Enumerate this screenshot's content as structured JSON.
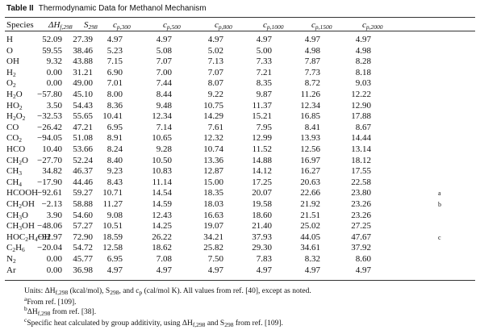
{
  "title": {
    "label": "Table II",
    "text": "Thermodynamic Data for Methanol Mechanism"
  },
  "header": [
    {
      "text": "Species"
    },
    {
      "text": "ΔH",
      "sub": "f,298"
    },
    {
      "text": "S",
      "sub": "298"
    },
    {
      "text": "c",
      "sub": "p,300"
    },
    {
      "text": "c",
      "sub": "p,500"
    },
    {
      "text": "c",
      "sub": "p,800"
    },
    {
      "text": "c",
      "sub": "p,1000"
    },
    {
      "text": "c",
      "sub": "p,1500"
    },
    {
      "text": "c",
      "sub": "p,2000"
    }
  ],
  "rows": [
    [
      "H",
      "52.09",
      "27.39",
      "4.97",
      "4.97",
      "4.97",
      "4.97",
      "4.97",
      "4.97"
    ],
    [
      "O",
      "59.55",
      "38.46",
      "5.23",
      "5.08",
      "5.02",
      "5.00",
      "4.98",
      "4.98"
    ],
    [
      "OH",
      "9.32",
      "43.88",
      "7.15",
      "7.07",
      "7.13",
      "7.33",
      "7.87",
      "8.28"
    ],
    [
      "H2",
      "0.00",
      "31.21",
      "6.90",
      "7.00",
      "7.07",
      "7.21",
      "7.73",
      "8.18"
    ],
    [
      "O2",
      "0.00",
      "49.00",
      "7.01",
      "7.44",
      "8.07",
      "8.35",
      "8.72",
      "9.03"
    ],
    [
      "H2O",
      "−57.80",
      "45.10",
      "8.00",
      "8.44",
      "9.22",
      "9.87",
      "11.26",
      "12.22"
    ],
    [
      "HO2",
      "3.50",
      "54.43",
      "8.36",
      "9.48",
      "10.75",
      "11.37",
      "12.34",
      "12.90"
    ],
    [
      "H2O2",
      "−32.53",
      "55.65",
      "10.41",
      "12.34",
      "14.29",
      "15.21",
      "16.85",
      "17.88"
    ],
    [
      "CO",
      "−26.42",
      "47.21",
      "6.95",
      "7.14",
      "7.61",
      "7.95",
      "8.41",
      "8.67"
    ],
    [
      "CO2",
      "−94.05",
      "51.08",
      "8.91",
      "10.65",
      "12.32",
      "12.99",
      "13.93",
      "14.44"
    ],
    [
      "HCO",
      "10.40",
      "53.66",
      "8.24",
      "9.28",
      "10.74",
      "11.52",
      "12.56",
      "13.14"
    ],
    [
      "CH2O",
      "−27.70",
      "52.24",
      "8.40",
      "10.50",
      "13.36",
      "14.88",
      "16.97",
      "18.12"
    ],
    [
      "CH3",
      "34.82",
      "46.37",
      "9.23",
      "10.83",
      "12.87",
      "14.12",
      "16.27",
      "17.55"
    ],
    [
      "CH4",
      "−17.90",
      "44.46",
      "8.43",
      "11.14",
      "15.00",
      "17.25",
      "20.63",
      "22.58"
    ],
    [
      "HCOOH",
      "−92.61",
      "59.27",
      "10.71",
      "14.54",
      "18.35",
      "20.07",
      "22.66",
      "23.80",
      "a"
    ],
    [
      "CH2OH",
      "−2.13",
      "58.88",
      "11.27",
      "14.59",
      "18.03",
      "19.58",
      "21.92",
      "23.26",
      "b"
    ],
    [
      "CH3O",
      "3.90",
      "54.60",
      "9.08",
      "12.43",
      "16.63",
      "18.60",
      "21.51",
      "23.26"
    ],
    [
      "CH3OH",
      "−48.06",
      "57.27",
      "10.51",
      "14.25",
      "19.07",
      "21.40",
      "25.02",
      "27.25"
    ],
    [
      "HOC2H4OH",
      "−92.97",
      "72.90",
      "18.59",
      "26.22",
      "34.21",
      "37.93",
      "44.05",
      "47.67",
      "c"
    ],
    [
      "C2H6",
      "−20.04",
      "54.72",
      "12.58",
      "18.62",
      "25.82",
      "29.30",
      "34.61",
      "37.92"
    ],
    [
      "N2",
      "0.00",
      "45.77",
      "6.95",
      "7.08",
      "7.50",
      "7.83",
      "8.32",
      "8.60"
    ],
    [
      "Ar",
      "0.00",
      "36.98",
      "4.97",
      "4.97",
      "4.97",
      "4.97",
      "4.97",
      "4.97"
    ]
  ],
  "notes": [
    [
      "Units: ΔH",
      "f,298",
      " (kcal/mol), S",
      "298",
      ", and c",
      "p",
      " (cal/mol K). All values from ref. [40], except as noted."
    ],
    [
      "a",
      "From ref. [109]."
    ],
    [
      "b",
      "ΔH",
      "f,298",
      " from ref. [38]."
    ],
    [
      "c",
      "Specific heat calculated by group additivity, using ΔH",
      "f,298",
      " and S",
      "298",
      " from ref. [109]."
    ]
  ]
}
